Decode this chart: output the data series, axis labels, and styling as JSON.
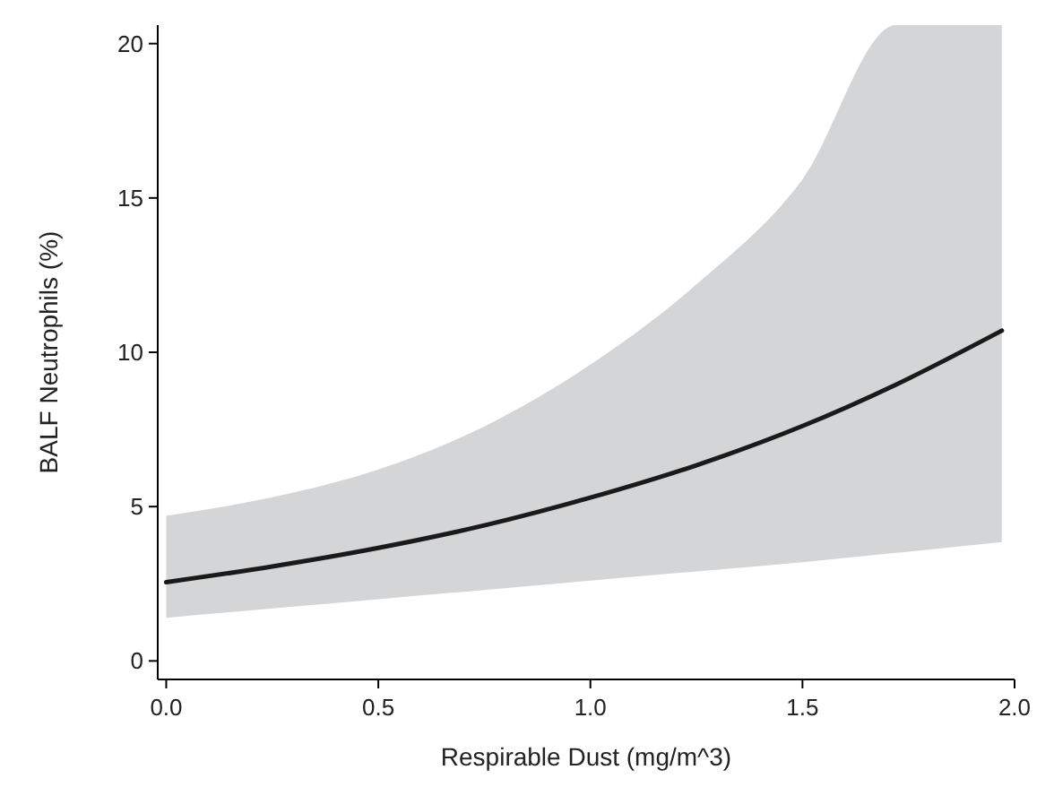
{
  "chart_data": {
    "type": "line",
    "xlabel": "Respirable Dust (mg/m^3)",
    "ylabel": "BALF Neutrophils (%)",
    "x": [
      0,
      0.25,
      0.5,
      0.75,
      1.0,
      1.25,
      1.5,
      1.72,
      1.97
    ],
    "series": [
      {
        "color": "#1a1a1a",
        "values": [
          2.55,
          3.06,
          3.66,
          4.39,
          5.29,
          6.34,
          7.61,
          8.95,
          10.7
        ],
        "lower": [
          1.4,
          1.7,
          2.0,
          2.3,
          2.6,
          2.9,
          3.2,
          3.5,
          3.85
        ],
        "upper": [
          4.7,
          5.3,
          6.2,
          7.6,
          9.6,
          12.2,
          15.6,
          20.6,
          20.6
        ]
      }
    ],
    "xlim": [
      -0.02,
      2.0
    ],
    "xticks": [
      {
        "value": 0,
        "label": "0.0"
      },
      0.5,
      {
        "value": 1,
        "label": "1.0"
      },
      1.5,
      {
        "value": 2,
        "label": "2.0"
      }
    ],
    "ylim": [
      -0.6,
      20.6
    ],
    "yticks": [
      0,
      5,
      10,
      15,
      20
    ],
    "marker": "none",
    "line_style": "solid"
  }
}
